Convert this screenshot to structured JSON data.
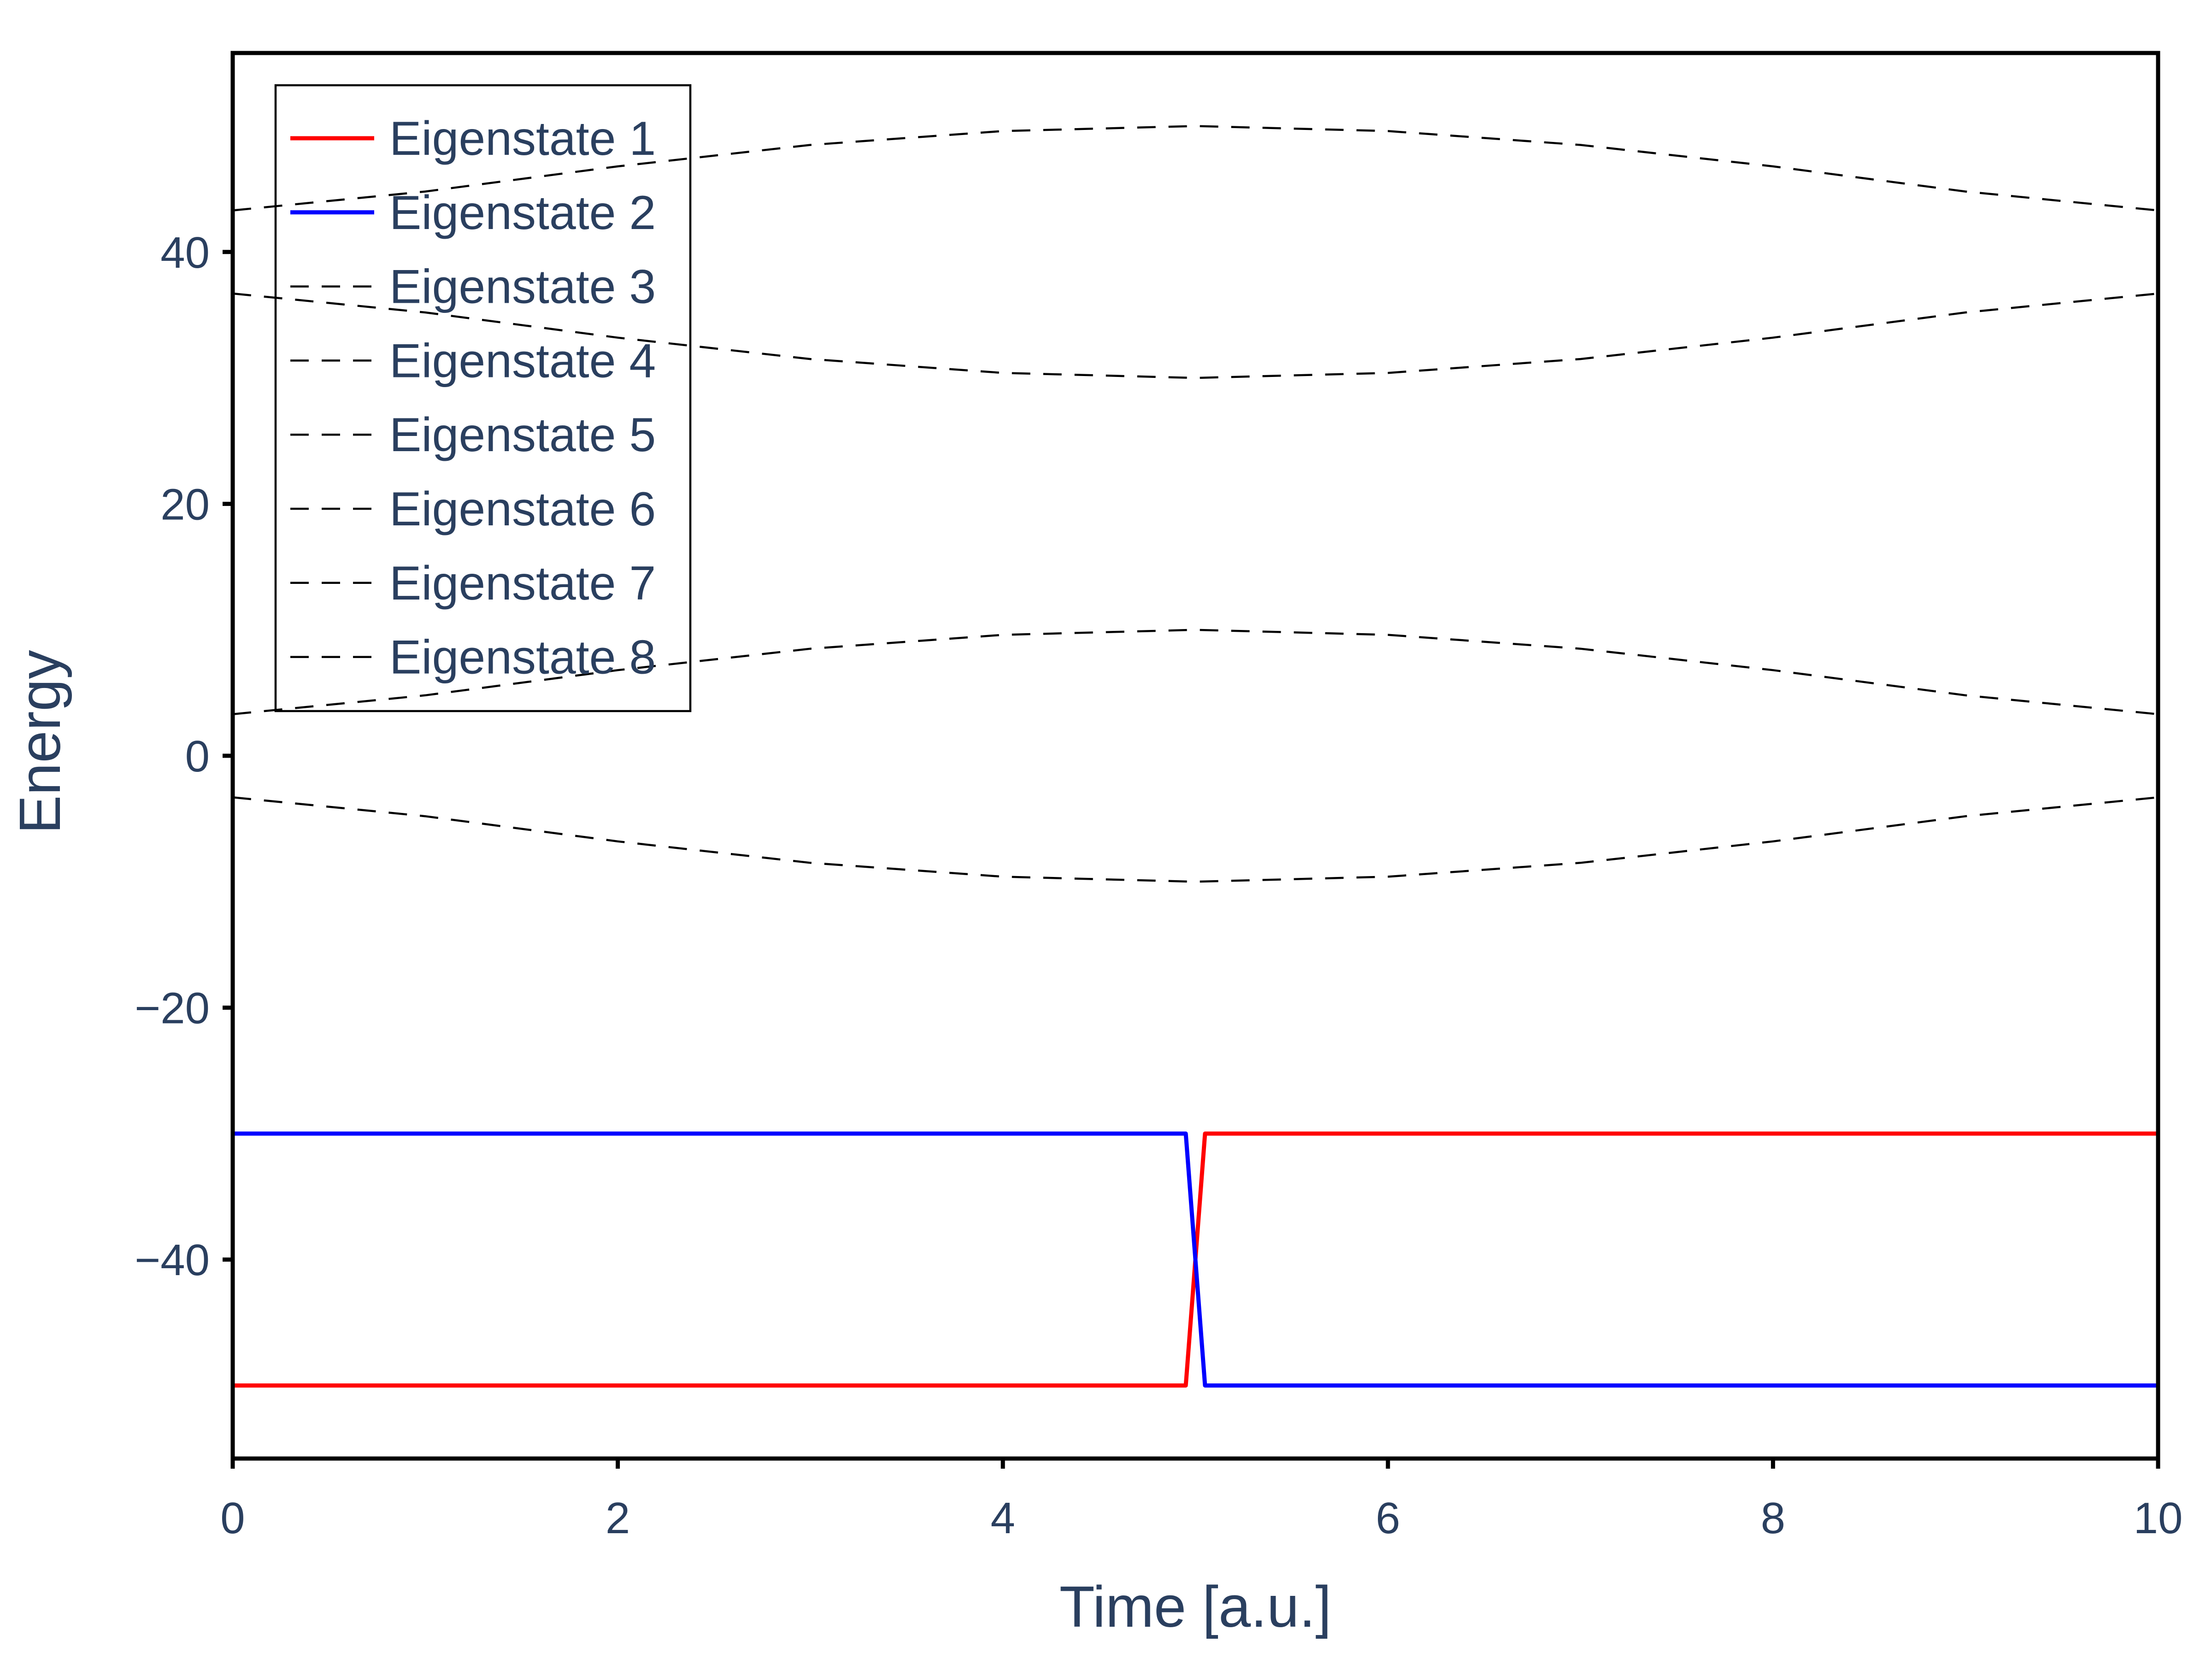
{
  "chart_data": {
    "type": "line",
    "title": "",
    "xlabel": "Time [a.u.]",
    "ylabel": "Energy",
    "xlim": [
      0,
      10
    ],
    "ylim": [
      -55.8,
      55.8
    ],
    "xticks": [
      0,
      2,
      4,
      6,
      8,
      10
    ],
    "xtick_labels": [
      "0",
      "2",
      "4",
      "6",
      "8",
      "10"
    ],
    "yticks": [
      -40,
      -20,
      0,
      20,
      40
    ],
    "ytick_labels": [
      "−40",
      "−20",
      "0",
      "20",
      "40"
    ],
    "grid": false,
    "legend_position": "top-left",
    "series": [
      {
        "name": "Eigenstate 1",
        "color": "#ff0000",
        "dash": "solid",
        "x": [
          0,
          4.95,
          5.05,
          10
        ],
        "y": [
          -50,
          -50,
          -30,
          -30
        ]
      },
      {
        "name": "Eigenstate 2",
        "color": "#0000ff",
        "dash": "solid",
        "x": [
          0,
          4.95,
          5.05,
          10
        ],
        "y": [
          -30,
          -30,
          -50,
          -50
        ]
      },
      {
        "name": "Eigenstate 3",
        "color": "#000000",
        "dash": "dashed",
        "x": [
          0,
          1,
          2,
          3,
          4,
          5,
          6,
          7,
          8,
          9,
          10
        ],
        "y": [
          -3.3,
          -4.8,
          -6.8,
          -8.5,
          -9.6,
          -10,
          -9.6,
          -8.5,
          -6.8,
          -4.8,
          -3.3
        ]
      },
      {
        "name": "Eigenstate 4",
        "color": "#000000",
        "dash": "dashed",
        "x": [
          0,
          1,
          2,
          3,
          4,
          5,
          6,
          7,
          8,
          9,
          10
        ],
        "y": [
          3.3,
          4.8,
          6.8,
          8.5,
          9.6,
          10,
          9.6,
          8.5,
          6.8,
          4.8,
          3.3
        ]
      },
      {
        "name": "Eigenstate 5",
        "color": "#000000",
        "dash": "dashed",
        "x": [
          0,
          1,
          2,
          3,
          4,
          5,
          6,
          7,
          8,
          9,
          10
        ],
        "y": [
          36.7,
          35.2,
          33.2,
          31.5,
          30.4,
          30,
          30.4,
          31.5,
          33.2,
          35.2,
          36.7
        ]
      },
      {
        "name": "Eigenstate 6",
        "color": "#000000",
        "dash": "dashed",
        "x": [
          0,
          1,
          2,
          3,
          4,
          5,
          6,
          7,
          8,
          9,
          10
        ],
        "y": [
          43.3,
          44.8,
          46.8,
          48.5,
          49.6,
          50,
          49.6,
          48.5,
          46.8,
          44.8,
          43.3
        ]
      },
      {
        "name": "Eigenstate 7",
        "color": "#000000",
        "dash": "dashed",
        "x": [],
        "y": []
      },
      {
        "name": "Eigenstate 8",
        "color": "#000000",
        "dash": "dashed",
        "x": [],
        "y": []
      }
    ]
  }
}
